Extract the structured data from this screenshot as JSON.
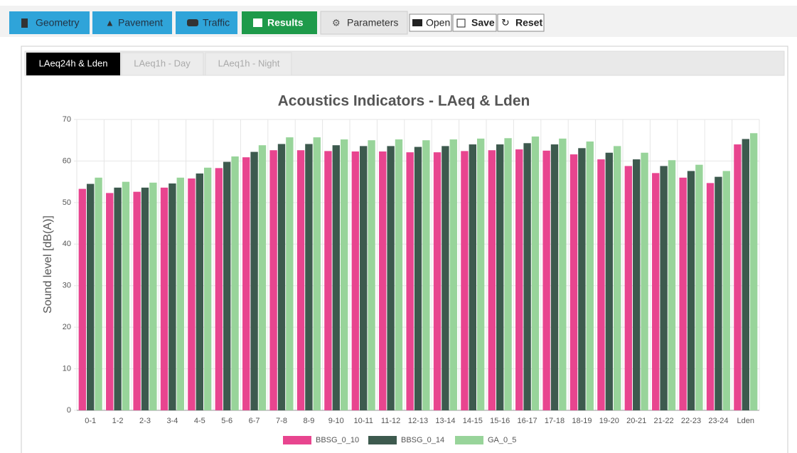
{
  "toolbar": {
    "buttons": [
      "Geometry",
      "Pavement",
      "Traffic",
      "Results",
      "Parameters",
      "Open",
      "Save",
      "Reset"
    ]
  },
  "tabs": [
    "LAeq24h & Lden",
    "LAeq1h - Day",
    "LAeq1h - Night"
  ],
  "chart_data": {
    "type": "bar",
    "title": "Acoustics Indicators - LAeq & Lden",
    "y_label": "Sound level [dB(A)]",
    "categories": [
      "0-1",
      "1-2",
      "2-3",
      "3-4",
      "4-5",
      "5-6",
      "6-7",
      "7-8",
      "8-9",
      "9-10",
      "10-11",
      "11-12",
      "12-13",
      "13-14",
      "14-15",
      "15-16",
      "16-17",
      "17-18",
      "18-19",
      "19-20",
      "20-21",
      "21-22",
      "22-23",
      "23-24",
      "Lden"
    ],
    "series": [
      {
        "name": "BBSG_0_10",
        "color": "#e8458f",
        "values": [
          53.3,
          52.3,
          52.6,
          53.6,
          55.8,
          58.3,
          60.9,
          62.6,
          62.6,
          62.4,
          62.3,
          62.3,
          62.1,
          62.1,
          62.4,
          62.6,
          62.8,
          62.5,
          61.6,
          60.4,
          58.8,
          57.1,
          56.0,
          54.7,
          64.0
        ]
      },
      {
        "name": "BBSG_0_14",
        "color": "#3d5a4e",
        "values": [
          54.5,
          53.6,
          53.6,
          54.6,
          57.0,
          59.8,
          62.2,
          64.1,
          64.1,
          63.8,
          63.6,
          63.6,
          63.4,
          63.6,
          64.0,
          64.0,
          64.3,
          64.0,
          63.1,
          62.0,
          60.4,
          58.8,
          57.6,
          56.2,
          65.3
        ]
      },
      {
        "name": "GA_0_5",
        "color": "#98d49a",
        "values": [
          56.0,
          55.0,
          54.8,
          56.0,
          58.4,
          61.1,
          63.8,
          65.7,
          65.7,
          65.2,
          65.0,
          65.2,
          65.0,
          65.2,
          65.4,
          65.5,
          65.9,
          65.4,
          64.7,
          63.6,
          62.0,
          60.2,
          59.1,
          57.6,
          66.7
        ]
      }
    ],
    "ylim": [
      0,
      70
    ],
    "yticks": [
      0,
      10,
      20,
      30,
      40,
      50,
      60,
      70
    ],
    "grid": true,
    "legend": "bottom"
  }
}
